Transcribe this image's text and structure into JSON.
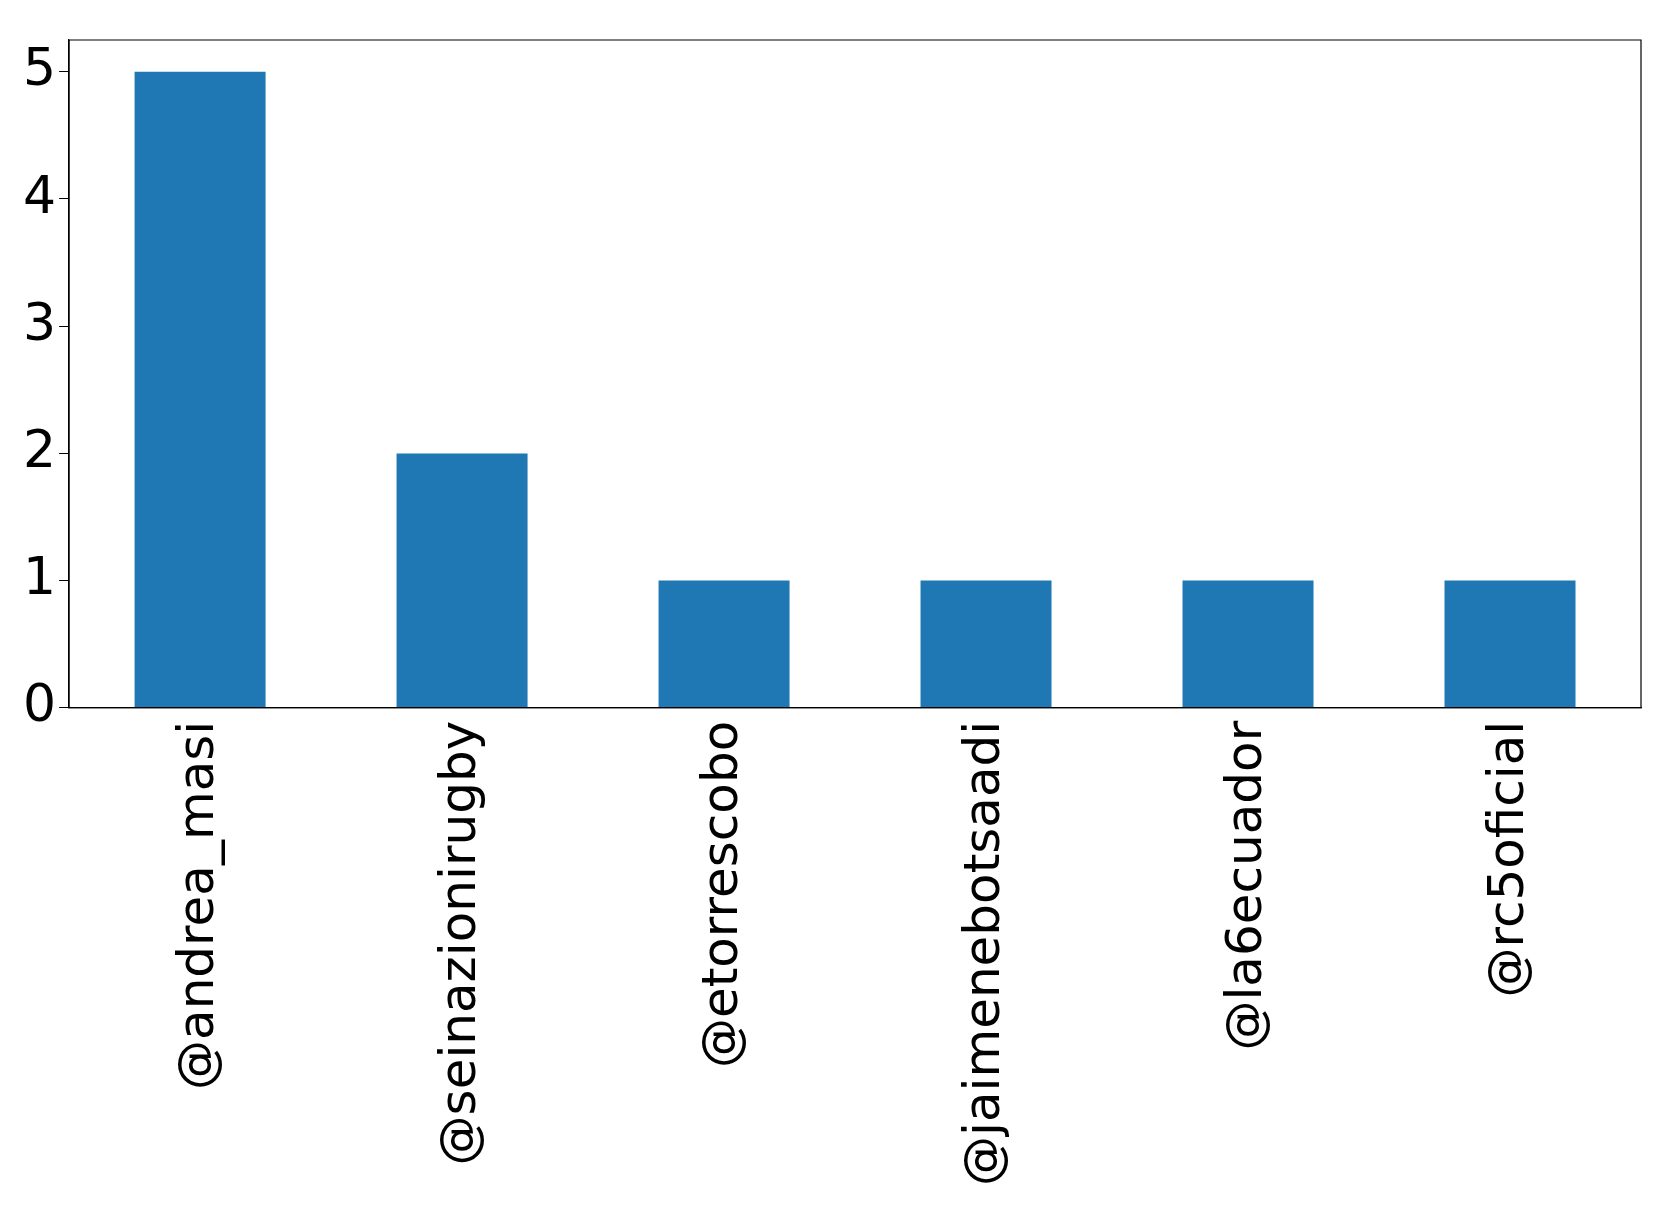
{
  "chart_data": {
    "type": "bar",
    "categories": [
      "@andrea_masi",
      "@seinazionirugby",
      "@etorrescobo",
      "@jaimenebotsaadi",
      "@la6ecuador",
      "@rc5oficial"
    ],
    "values": [
      5,
      2,
      1,
      1,
      1,
      1
    ],
    "color": "#1f77b4",
    "ylim": [
      0,
      5.25
    ],
    "yticks": [
      0,
      1,
      2,
      3,
      4,
      5
    ],
    "grid": false,
    "legend": false
  }
}
